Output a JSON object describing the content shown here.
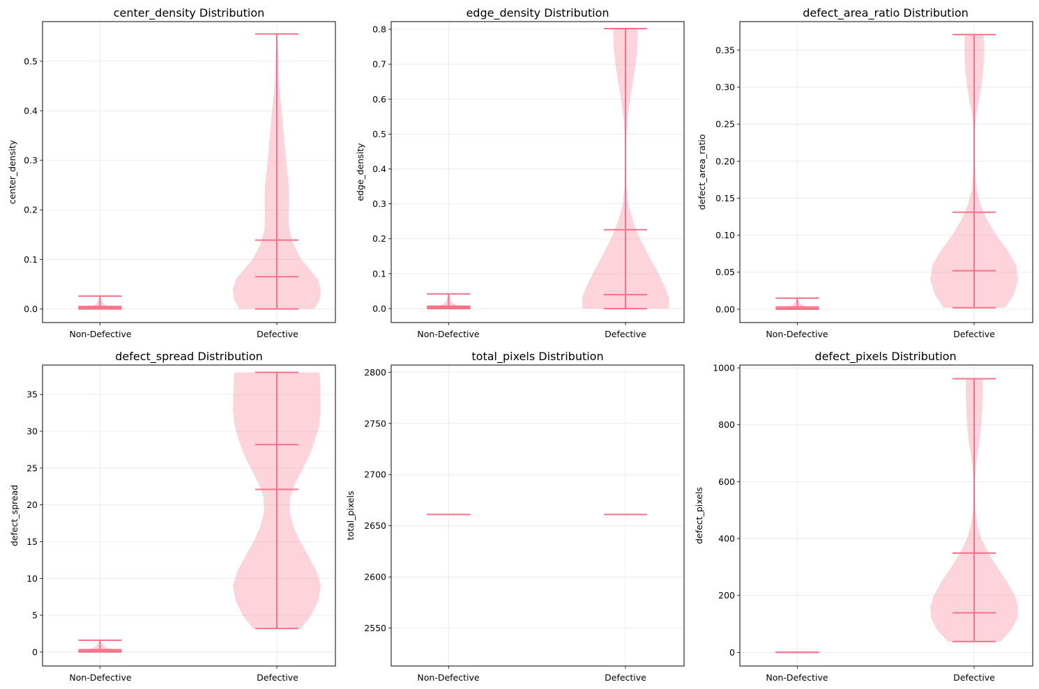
{
  "colors": {
    "violin": "#f77189",
    "grid": "#b0b0b0",
    "axis": "#000000"
  },
  "chart_data": [
    {
      "type": "violin",
      "title": "center_density Distribution",
      "ylabel": "center_density",
      "categories": [
        "Non-Defective",
        "Defective"
      ],
      "ylim": [
        -0.0275,
        0.58
      ],
      "yticks": [
        0.0,
        0.1,
        0.2,
        0.3,
        0.4,
        0.5
      ],
      "tick_labels": [
        "0.0",
        "0.1",
        "0.2",
        "0.3",
        "0.4",
        "0.5"
      ],
      "violins": [
        {
          "category": "Non-Defective",
          "min": 0.0,
          "max": 0.026,
          "mean": 0.005,
          "median": 0.002,
          "profile": [
            [
              0.0,
              0.12
            ],
            [
              0.003,
              0.35
            ],
            [
              0.006,
              0.18
            ],
            [
              0.009,
              0.1
            ],
            [
              0.013,
              0.07
            ],
            [
              0.018,
              0.04
            ],
            [
              0.022,
              0.02
            ],
            [
              0.026,
              0.01
            ]
          ]
        },
        {
          "category": "Defective",
          "min": 0.0,
          "max": 0.555,
          "mean": 0.139,
          "median": 0.065,
          "profile": [
            [
              0.0,
              0.85
            ],
            [
              0.02,
              0.98
            ],
            [
              0.04,
              1.0
            ],
            [
              0.06,
              0.93
            ],
            [
              0.08,
              0.75
            ],
            [
              0.1,
              0.55
            ],
            [
              0.13,
              0.38
            ],
            [
              0.16,
              0.28
            ],
            [
              0.19,
              0.27
            ],
            [
              0.22,
              0.28
            ],
            [
              0.25,
              0.27
            ],
            [
              0.28,
              0.23
            ],
            [
              0.31,
              0.2
            ],
            [
              0.34,
              0.17
            ],
            [
              0.37,
              0.14
            ],
            [
              0.4,
              0.11
            ],
            [
              0.43,
              0.07
            ],
            [
              0.46,
              0.05
            ],
            [
              0.49,
              0.04
            ],
            [
              0.52,
              0.025
            ],
            [
              0.555,
              0.015
            ]
          ]
        }
      ]
    },
    {
      "type": "violin",
      "title": "edge_density Distribution",
      "ylabel": "edge_density",
      "categories": [
        "Non-Defective",
        "Defective"
      ],
      "ylim": [
        -0.04,
        0.822
      ],
      "yticks": [
        0.0,
        0.1,
        0.2,
        0.3,
        0.4,
        0.5,
        0.6,
        0.7,
        0.8
      ],
      "tick_labels": [
        "0.0",
        "0.1",
        "0.2",
        "0.3",
        "0.4",
        "0.5",
        "0.6",
        "0.7",
        "0.8"
      ],
      "violins": [
        {
          "category": "Non-Defective",
          "min": 0.0,
          "max": 0.042,
          "mean": 0.007,
          "median": 0.003,
          "profile": [
            [
              0.0,
              0.1
            ],
            [
              0.005,
              0.3
            ],
            [
              0.01,
              0.18
            ],
            [
              0.015,
              0.1
            ],
            [
              0.02,
              0.06
            ],
            [
              0.03,
              0.03
            ],
            [
              0.042,
              0.01
            ]
          ]
        },
        {
          "category": "Defective",
          "min": 0.0,
          "max": 0.802,
          "mean": 0.226,
          "median": 0.04,
          "profile": [
            [
              0.0,
              0.98
            ],
            [
              0.03,
              0.99
            ],
            [
              0.06,
              0.9
            ],
            [
              0.1,
              0.75
            ],
            [
              0.15,
              0.53
            ],
            [
              0.2,
              0.33
            ],
            [
              0.25,
              0.17
            ],
            [
              0.3,
              0.06
            ],
            [
              0.35,
              0.02
            ],
            [
              0.4,
              0.012
            ],
            [
              0.45,
              0.012
            ],
            [
              0.5,
              0.02
            ],
            [
              0.55,
              0.05
            ],
            [
              0.6,
              0.1
            ],
            [
              0.65,
              0.17
            ],
            [
              0.7,
              0.23
            ],
            [
              0.75,
              0.27
            ],
            [
              0.802,
              0.28
            ]
          ]
        }
      ]
    },
    {
      "type": "violin",
      "title": "defect_area_ratio Distribution",
      "ylabel": "defect_area_ratio",
      "categories": [
        "Non-Defective",
        "Defective"
      ],
      "ylim": [
        -0.018,
        0.3885
      ],
      "yticks": [
        0.0,
        0.05,
        0.1,
        0.15,
        0.2,
        0.25,
        0.3,
        0.35
      ],
      "tick_labels": [
        "0.00",
        "0.05",
        "0.10",
        "0.15",
        "0.20",
        "0.25",
        "0.30",
        "0.35"
      ],
      "violins": [
        {
          "category": "Non-Defective",
          "min": 0.0,
          "max": 0.015,
          "mean": 0.003,
          "median": 0.001,
          "profile": [
            [
              0.0,
              0.1
            ],
            [
              0.002,
              0.3
            ],
            [
              0.004,
              0.18
            ],
            [
              0.006,
              0.1
            ],
            [
              0.009,
              0.05
            ],
            [
              0.012,
              0.02
            ],
            [
              0.015,
              0.01
            ]
          ]
        },
        {
          "category": "Defective",
          "min": 0.002,
          "max": 0.371,
          "mean": 0.131,
          "median": 0.052,
          "profile": [
            [
              0.002,
              0.7
            ],
            [
              0.02,
              0.9
            ],
            [
              0.04,
              1.0
            ],
            [
              0.06,
              0.95
            ],
            [
              0.08,
              0.75
            ],
            [
              0.1,
              0.5
            ],
            [
              0.12,
              0.3
            ],
            [
              0.14,
              0.15
            ],
            [
              0.16,
              0.06
            ],
            [
              0.18,
              0.03
            ],
            [
              0.2,
              0.015
            ],
            [
              0.22,
              0.012
            ],
            [
              0.24,
              0.015
            ],
            [
              0.26,
              0.04
            ],
            [
              0.28,
              0.1
            ],
            [
              0.3,
              0.16
            ],
            [
              0.32,
              0.2
            ],
            [
              0.34,
              0.22
            ],
            [
              0.36,
              0.22
            ],
            [
              0.371,
              0.21
            ]
          ]
        }
      ]
    },
    {
      "type": "violin",
      "title": "defect_spread Distribution",
      "ylabel": "defect_spread",
      "categories": [
        "Non-Defective",
        "Defective"
      ],
      "ylim": [
        -1.9,
        39.0
      ],
      "yticks": [
        0,
        5,
        10,
        15,
        20,
        25,
        30,
        35
      ],
      "tick_labels": [
        "0",
        "5",
        "10",
        "15",
        "20",
        "25",
        "30",
        "35"
      ],
      "violins": [
        {
          "category": "Non-Defective",
          "min": 0.0,
          "max": 1.6,
          "mean": 0.33,
          "median": 0.12,
          "profile": [
            [
              0.0,
              0.15
            ],
            [
              0.2,
              0.35
            ],
            [
              0.4,
              0.25
            ],
            [
              0.6,
              0.15
            ],
            [
              0.9,
              0.08
            ],
            [
              1.2,
              0.04
            ],
            [
              1.6,
              0.01
            ]
          ]
        },
        {
          "category": "Defective",
          "min": 3.2,
          "max": 38.0,
          "mean": 22.1,
          "median": 28.2,
          "profile": [
            [
              3.2,
              0.55
            ],
            [
              5,
              0.78
            ],
            [
              7,
              0.94
            ],
            [
              9,
              1.0
            ],
            [
              11,
              0.9
            ],
            [
              13,
              0.72
            ],
            [
              15,
              0.53
            ],
            [
              17,
              0.38
            ],
            [
              19,
              0.29
            ],
            [
              21,
              0.3
            ],
            [
              23,
              0.42
            ],
            [
              25,
              0.6
            ],
            [
              27,
              0.76
            ],
            [
              29,
              0.88
            ],
            [
              31,
              0.97
            ],
            [
              33,
              1.0
            ],
            [
              35,
              0.99
            ],
            [
              37,
              0.98
            ],
            [
              38,
              0.97
            ]
          ]
        }
      ]
    },
    {
      "type": "violin",
      "title": "total_pixels Distribution",
      "ylabel": "total_pixels",
      "categories": [
        "Non-Defective",
        "Defective"
      ],
      "ylim": [
        2513,
        2807
      ],
      "yticks": [
        2550,
        2600,
        2650,
        2700,
        2750,
        2800
      ],
      "tick_labels": [
        "2550",
        "2600",
        "2650",
        "2700",
        "2750",
        "2800"
      ],
      "violins": [
        {
          "category": "Non-Defective",
          "min": 2661,
          "max": 2661,
          "mean": 2661,
          "median": 2661,
          "profile": []
        },
        {
          "category": "Defective",
          "min": 2661,
          "max": 2661,
          "mean": 2661,
          "median": 2661,
          "profile": []
        }
      ]
    },
    {
      "type": "violin",
      "title": "defect_pixels Distribution",
      "ylabel": "defect_pixels",
      "categories": [
        "Non-Defective",
        "Defective"
      ],
      "ylim": [
        -48,
        1010
      ],
      "yticks": [
        0,
        200,
        400,
        600,
        800,
        1000
      ],
      "tick_labels": [
        "0",
        "200",
        "400",
        "600",
        "800",
        "1000"
      ],
      "violins": [
        {
          "category": "Non-Defective",
          "min": 0,
          "max": 0,
          "mean": 0,
          "median": 0,
          "profile": []
        },
        {
          "category": "Defective",
          "min": 38,
          "max": 962,
          "mean": 349,
          "median": 139,
          "profile": [
            [
              38,
              0.6
            ],
            [
              80,
              0.85
            ],
            [
              120,
              0.98
            ],
            [
              160,
              1.0
            ],
            [
              200,
              0.92
            ],
            [
              250,
              0.74
            ],
            [
              300,
              0.52
            ],
            [
              350,
              0.32
            ],
            [
              400,
              0.16
            ],
            [
              450,
              0.07
            ],
            [
              500,
              0.03
            ],
            [
              550,
              0.018
            ],
            [
              600,
              0.018
            ],
            [
              650,
              0.035
            ],
            [
              700,
              0.08
            ],
            [
              750,
              0.13
            ],
            [
              800,
              0.16
            ],
            [
              850,
              0.18
            ],
            [
              900,
              0.19
            ],
            [
              962,
              0.19
            ]
          ]
        }
      ]
    }
  ]
}
